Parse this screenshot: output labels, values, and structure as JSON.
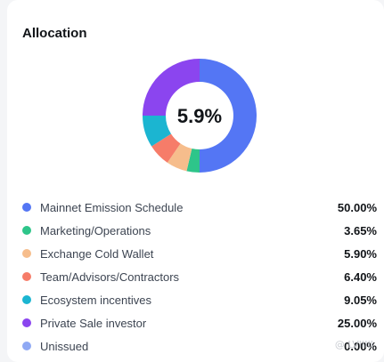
{
  "card": {
    "title": "Allocation"
  },
  "watermark": "@ LVIIIII",
  "chart_data": {
    "type": "pie",
    "style": "donut",
    "center_label": "5.9%",
    "series": [
      {
        "name": "Mainnet Emission Schedule",
        "value": 50.0,
        "display": "50.00%",
        "color": "#5476f4"
      },
      {
        "name": "Marketing/Operations",
        "value": 3.65,
        "display": "3.65%",
        "color": "#2ec58a"
      },
      {
        "name": "Exchange Cold Wallet",
        "value": 5.9,
        "display": "5.90%",
        "color": "#f6bd8c"
      },
      {
        "name": "Team/Advisors/Contractors",
        "value": 6.4,
        "display": "6.40%",
        "color": "#f67c69"
      },
      {
        "name": "Ecosystem incentives",
        "value": 9.05,
        "display": "9.05%",
        "color": "#1bb5d1"
      },
      {
        "name": "Private Sale investor",
        "value": 25.0,
        "display": "25.00%",
        "color": "#8b45ef"
      },
      {
        "name": "Unissued",
        "value": 0.0,
        "display": "0.00%",
        "color": "#8fa9f4"
      }
    ]
  }
}
